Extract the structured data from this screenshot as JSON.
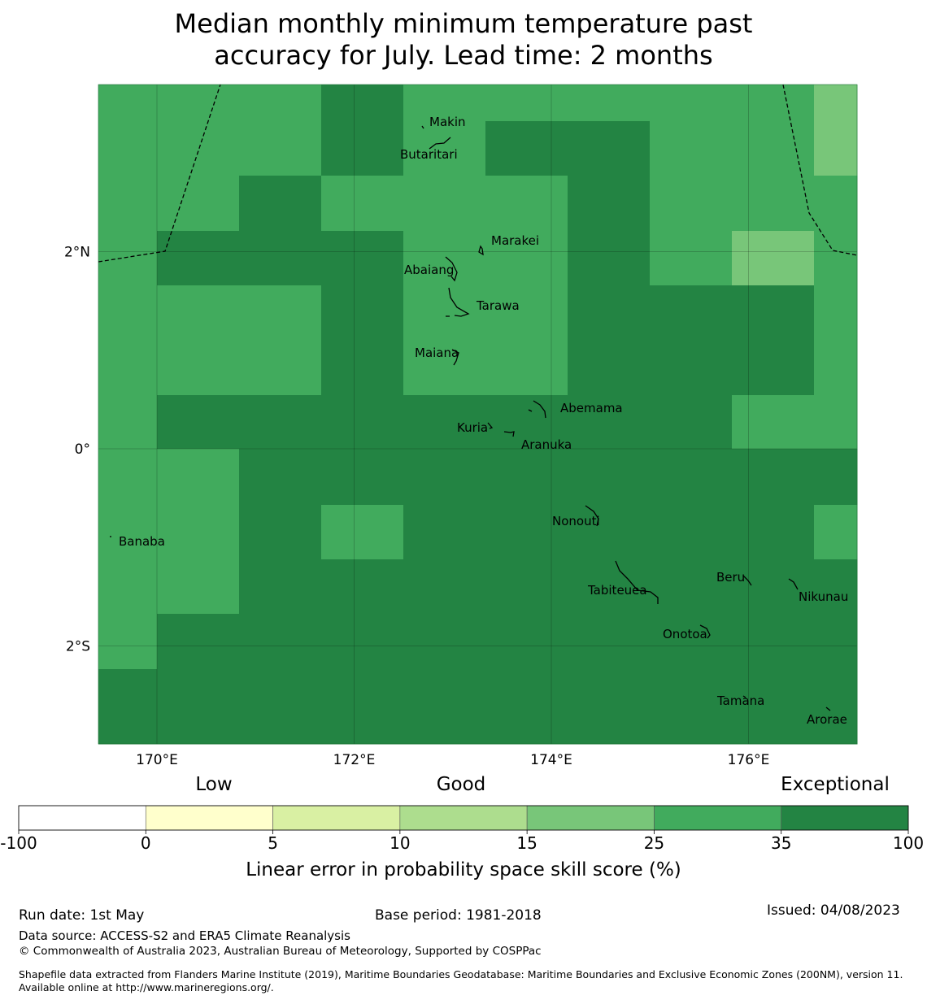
{
  "title": {
    "line1": "Median monthly minimum temperature past",
    "line2": "accuracy for July. Lead time: 2 months"
  },
  "axes": {
    "x_ticks": [
      "170°E",
      "172°E",
      "174°E",
      "176°E"
    ],
    "y_ticks": [
      "2°N",
      "0°",
      "2°S"
    ]
  },
  "islands": [
    {
      "name": "Makin",
      "lon": 172.98,
      "lat": 3.33
    },
    {
      "name": "Butaritari",
      "lon": 172.79,
      "lat": 3.07
    },
    {
      "name": "Marakei",
      "lon": 173.28,
      "lat": 2.01
    },
    {
      "name": "Abaiang",
      "lon": 173.05,
      "lat": 1.85
    },
    {
      "name": "Tarawa",
      "lon": 173.03,
      "lat": 1.42
    },
    {
      "name": "Maiana",
      "lon": 173.02,
      "lat": 0.93
    },
    {
      "name": "Abemama",
      "lon": 173.87,
      "lat": 0.4
    },
    {
      "name": "Kuria",
      "lon": 173.42,
      "lat": 0.23
    },
    {
      "name": "Aranuka",
      "lon": 173.62,
      "lat": 0.17
    },
    {
      "name": "Nonouti",
      "lon": 174.43,
      "lat": -0.66
    },
    {
      "name": "Banaba",
      "lon": 169.54,
      "lat": -0.86
    },
    {
      "name": "Tabiteuea",
      "lon": 174.85,
      "lat": -1.25
    },
    {
      "name": "Beru",
      "lon": 175.98,
      "lat": -1.33
    },
    {
      "name": "Nikunau",
      "lon": 176.45,
      "lat": -1.38
    },
    {
      "name": "Onotoa",
      "lon": 175.55,
      "lat": -1.85
    },
    {
      "name": "Tamana",
      "lon": 175.98,
      "lat": -2.52
    },
    {
      "name": "Arorae",
      "lon": 176.82,
      "lat": -2.65
    }
  ],
  "legend": {
    "category_labels": [
      "Low",
      "Good",
      "Exceptional"
    ],
    "boundaries": [
      "-100",
      "0",
      "5",
      "10",
      "15",
      "25",
      "35",
      "100"
    ],
    "colors": [
      "#ffffff",
      "#ffffcc",
      "#d9f0a3",
      "#addd8e",
      "#78c679",
      "#41ab5d",
      "#238443"
    ],
    "xlabel": "Linear error in probability space skill score (%)"
  },
  "map_grid": {
    "classes_legend_index_rows_north_to_south": [
      [
        5,
        5,
        5,
        6,
        5,
        5,
        5,
        5,
        5,
        4
      ],
      [
        5,
        5,
        5,
        6,
        5,
        6,
        6,
        5,
        5,
        4
      ],
      [
        5,
        5,
        6,
        5,
        5,
        5,
        6,
        5,
        5,
        5
      ],
      [
        5,
        6,
        6,
        6,
        5,
        5,
        6,
        5,
        4,
        5
      ],
      [
        5,
        5,
        5,
        6,
        5,
        5,
        6,
        6,
        6,
        5
      ],
      [
        5,
        5,
        5,
        6,
        5,
        5,
        6,
        6,
        6,
        5
      ],
      [
        5,
        6,
        6,
        6,
        6,
        6,
        6,
        6,
        5,
        5
      ],
      [
        5,
        5,
        6,
        6,
        6,
        6,
        6,
        6,
        6,
        6
      ],
      [
        5,
        5,
        6,
        5,
        6,
        6,
        6,
        6,
        6,
        5
      ],
      [
        5,
        5,
        6,
        6,
        6,
        6,
        6,
        6,
        6,
        6
      ],
      [
        5,
        6,
        6,
        6,
        6,
        6,
        6,
        6,
        6,
        6
      ],
      [
        6,
        6,
        6,
        6,
        6,
        6,
        6,
        6,
        6,
        6
      ],
      [
        6,
        6,
        6,
        6,
        6,
        6,
        6,
        6,
        6,
        6
      ]
    ]
  },
  "footer": {
    "run_date": "Run date: 1st May",
    "base_period": "Base period: 1981-2018",
    "issued": "Issued: 04/08/2023",
    "data_source": "Data source: ACCESS-S2 and ERA5 Climate Reanalysis",
    "copyright": "© Commonwealth of Australia 2023, Australian Bureau of Meteorology, Supported by COSPPac",
    "shapefile": "Shapefile data extracted from Flanders Marine Institute (2019), Maritime Boundaries Geodatabase: Maritime Boundaries and Exclusive Economic Zones (200NM), version 11. Available online at http://www.marineregions.org/."
  }
}
